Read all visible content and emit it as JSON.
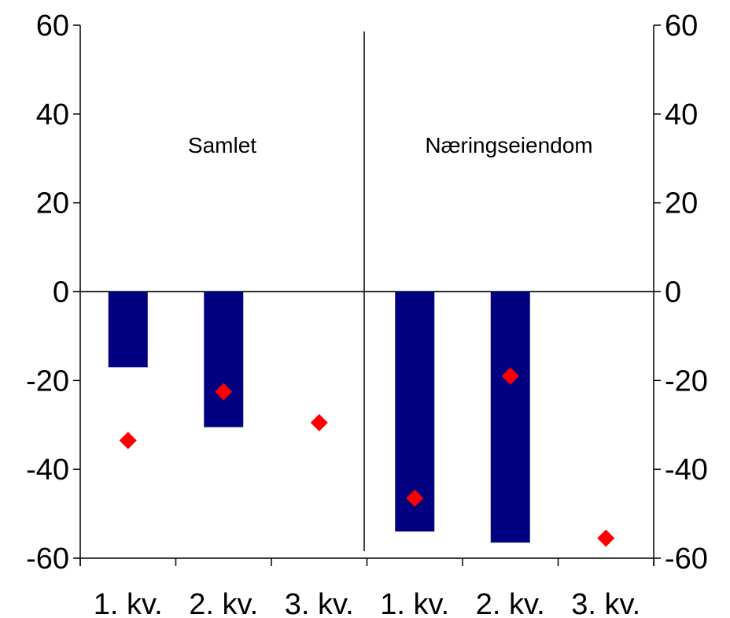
{
  "chart_data": {
    "type": "bar",
    "panels": [
      "Samlet",
      "Næringseiendom"
    ],
    "categories": [
      "1. kv.",
      "2. kv.",
      "3. kv.",
      "1. kv.",
      "2. kv.",
      "3. kv."
    ],
    "series": [
      {
        "name": "",
        "mark": "bar",
        "color": "#000080",
        "values": [
          -17,
          -30.5,
          null,
          -54,
          -56.5,
          null
        ]
      },
      {
        "name": "",
        "mark": "diamond",
        "color": "#ff0000",
        "values": [
          -33.5,
          -22.5,
          -29.5,
          -46.5,
          -19,
          -55.5
        ]
      }
    ],
    "yticks": [
      "60",
      "40",
      "20",
      "0",
      "-20",
      "-40",
      "-60"
    ],
    "ylim": [
      -60,
      60
    ],
    "title": "",
    "xlabel": "",
    "ylabel": "",
    "grid": false,
    "legend": "none"
  }
}
